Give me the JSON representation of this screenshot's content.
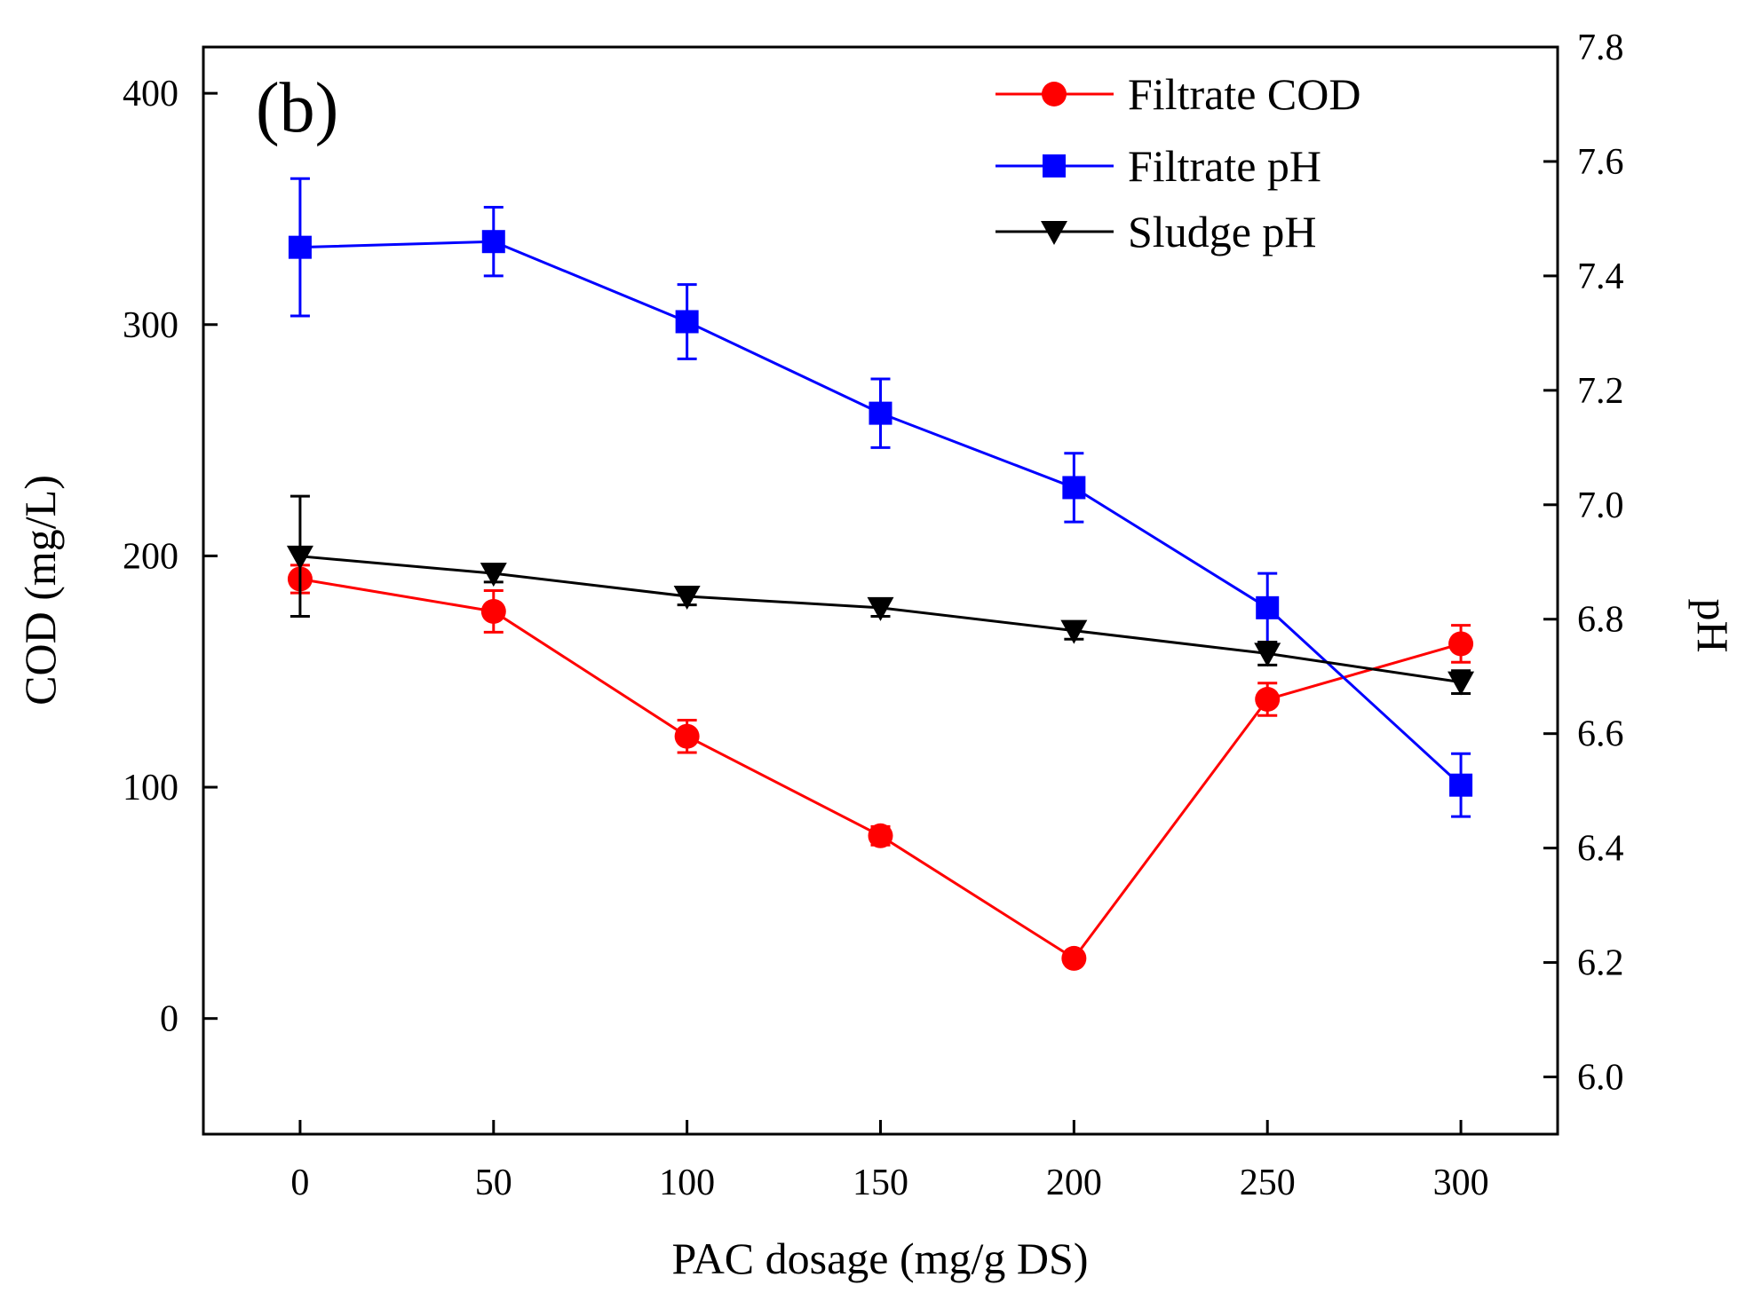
{
  "chart_data": {
    "type": "line",
    "panel_label": "(b)",
    "xlabel": "PAC dosage (mg/g DS)",
    "ylabel_left": "COD (mg/L)",
    "ylabel_right": "pH",
    "x": [
      0,
      50,
      100,
      150,
      200,
      250,
      300
    ],
    "xlim": [
      -25,
      325
    ],
    "xticks": [
      "0",
      "50",
      "100",
      "150",
      "200",
      "250",
      "300"
    ],
    "ylim_left": [
      -50,
      420
    ],
    "yticks_left": [
      "0",
      "100",
      "200",
      "300",
      "400"
    ],
    "ylim_right": [
      5.9,
      7.8
    ],
    "yticks_right": [
      "6.0",
      "6.2",
      "6.4",
      "6.6",
      "6.8",
      "7.0",
      "7.2",
      "7.4",
      "7.6",
      "7.8"
    ],
    "legend_position": "top-right",
    "series": [
      {
        "name": "Filtrate COD",
        "axis": "left",
        "color": "#ff0000",
        "marker": "circle",
        "values": [
          190,
          176,
          122,
          79,
          26,
          138,
          162
        ],
        "errors": [
          6,
          9,
          7,
          4,
          2,
          7,
          8
        ]
      },
      {
        "name": "Filtrate pH",
        "axis": "right",
        "color": "#0000ff",
        "marker": "square",
        "values": [
          7.45,
          7.46,
          7.32,
          7.16,
          7.03,
          6.82,
          6.51
        ],
        "errors": [
          0.12,
          0.06,
          0.065,
          0.06,
          0.06,
          0.06,
          0.055
        ]
      },
      {
        "name": "Sludge pH",
        "axis": "right",
        "color": "#000000",
        "marker": "triangle-down",
        "values": [
          6.91,
          6.88,
          6.84,
          6.82,
          6.78,
          6.74,
          6.69
        ],
        "errors": [
          0.105,
          0.015,
          0.015,
          0.015,
          0.015,
          0.02,
          0.02
        ]
      }
    ]
  }
}
